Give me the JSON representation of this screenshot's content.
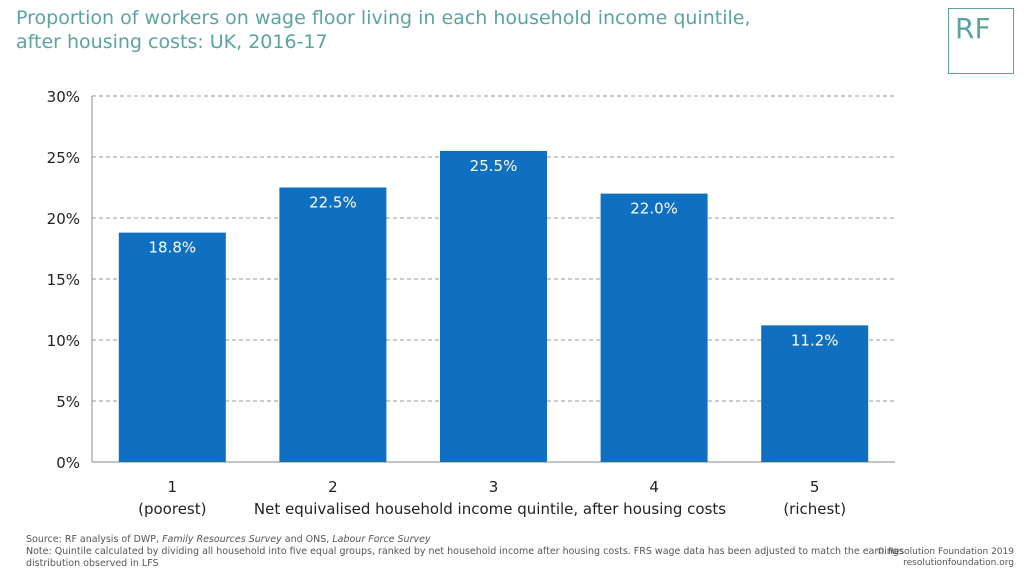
{
  "title_line1": "Proportion of workers on wage floor living in each household income quintile,",
  "title_line2": "after housing costs: UK, 2016-17",
  "logo_text": "RF",
  "colors": {
    "bar": "#0f70c2",
    "title": "#5aa4a0",
    "grid": "#999999"
  },
  "chart_data": {
    "type": "bar",
    "categories": [
      "1",
      "2",
      "3",
      "4",
      "5"
    ],
    "category_sublabels": [
      "(poorest)",
      "",
      "",
      "",
      "(richest)"
    ],
    "values": [
      18.8,
      22.5,
      25.5,
      22.0,
      11.2
    ],
    "data_labels": [
      "18.8%",
      "22.5%",
      "25.5%",
      "22.0%",
      "11.2%"
    ],
    "xlabel": "Net equivalised household income quintile, after housing costs",
    "ylabel": "",
    "ylim": [
      0,
      30
    ],
    "yticks": [
      0,
      5,
      10,
      15,
      20,
      25,
      30
    ],
    "ytick_labels": [
      "0%",
      "5%",
      "10%",
      "15%",
      "20%",
      "25%",
      "30%"
    ],
    "grid": true
  },
  "source_prefix": "Source: RF analysis of DWP, ",
  "source_frs": "Family Resources Survey",
  "source_mid": " and ONS, ",
  "source_lfs": "Labour Force Survey",
  "note": "Note: Quintile calculated by dividing all household into five equal groups, ranked by net household income after housing costs. FRS wage data has been adjusted to match the earnings distribution observed in LFS",
  "copyright_line1": "© Resolution Foundation 2019",
  "copyright_line2": "resolutionfoundation.org"
}
